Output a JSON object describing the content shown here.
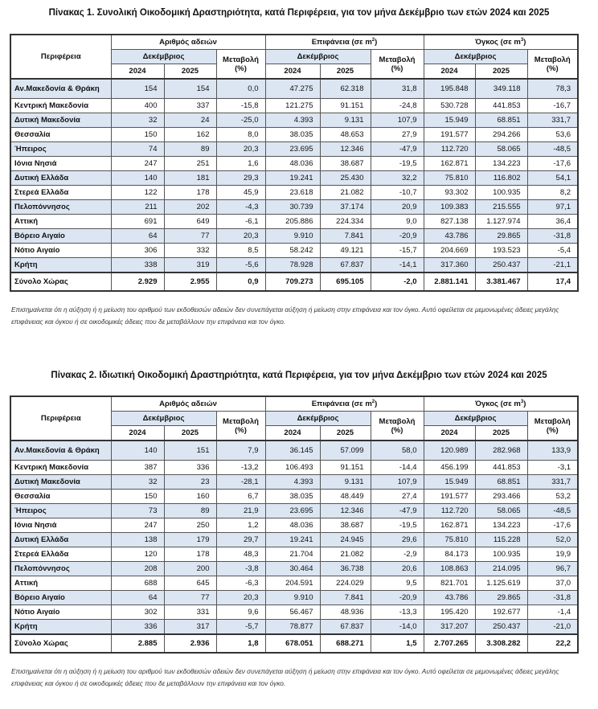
{
  "headers": {
    "region": "Περιφέρεια",
    "permits": "Αριθμός αδειών",
    "area": "Επιφάνεια (σε m",
    "volume": "Όγκος (σε m",
    "area_sup": "2",
    "volume_sup": "3",
    "month": "Δεκέμβριος",
    "change": "Μεταβολή",
    "change_unit": "(%)",
    "y1": "2024",
    "y2": "2025"
  },
  "tables": [
    {
      "title": "Πίνακας 1. Συνολική Οικοδομική Δραστηριότητα, κατά  Περιφέρεια, για τον μήνα Δεκέμβριο των ετών 2024 και 2025",
      "rows": [
        [
          "Αν.Μακεδονία & Θράκη",
          "154",
          "154",
          "0,0",
          "47.275",
          "62.318",
          "31,8",
          "195.848",
          "349.118",
          "78,3"
        ],
        [
          "Κεντρική Μακεδονία",
          "400",
          "337",
          "-15,8",
          "121.275",
          "91.151",
          "-24,8",
          "530.728",
          "441.853",
          "-16,7"
        ],
        [
          "Δυτική Μακεδονία",
          "32",
          "24",
          "-25,0",
          "4.393",
          "9.131",
          "107,9",
          "15.949",
          "68.851",
          "331,7"
        ],
        [
          "Θεσσαλία",
          "150",
          "162",
          "8,0",
          "38.035",
          "48.653",
          "27,9",
          "191.577",
          "294.266",
          "53,6"
        ],
        [
          "Ήπειρος",
          "74",
          "89",
          "20,3",
          "23.695",
          "12.346",
          "-47,9",
          "112.720",
          "58.065",
          "-48,5"
        ],
        [
          "Ιόνια Νησιά",
          "247",
          "251",
          "1,6",
          "48.036",
          "38.687",
          "-19,5",
          "162.871",
          "134.223",
          "-17,6"
        ],
        [
          "Δυτική Ελλάδα",
          "140",
          "181",
          "29,3",
          "19.241",
          "25.430",
          "32,2",
          "75.810",
          "116.802",
          "54,1"
        ],
        [
          "Στερεά Ελλάδα",
          "122",
          "178",
          "45,9",
          "23.618",
          "21.082",
          "-10,7",
          "93.302",
          "100.935",
          "8,2"
        ],
        [
          "Πελοπόννησος",
          "211",
          "202",
          "-4,3",
          "30.739",
          "37.174",
          "20,9",
          "109.383",
          "215.555",
          "97,1"
        ],
        [
          "Αττική",
          "691",
          "649",
          "-6,1",
          "205.886",
          "224.334",
          "9,0",
          "827.138",
          "1.127.974",
          "36,4"
        ],
        [
          "Βόρειο Αιγαίο",
          "64",
          "77",
          "20,3",
          "9.910",
          "7.841",
          "-20,9",
          "43.786",
          "29.865",
          "-31,8"
        ],
        [
          "Νότιο Αιγαίο",
          "306",
          "332",
          "8,5",
          "58.242",
          "49.121",
          "-15,7",
          "204.669",
          "193.523",
          "-5,4"
        ],
        [
          "Κρήτη",
          "338",
          "319",
          "-5,6",
          "78.928",
          "67.837",
          "-14,1",
          "317.360",
          "250.437",
          "-21,1"
        ],
        [
          "Σύνολο Χώρας",
          "2.929",
          "2.955",
          "0,9",
          "709.273",
          "695.105",
          "-2,0",
          "2.881.141",
          "3.381.467",
          "17,4"
        ]
      ],
      "note": "Επισημαίνεται ότι η αύξηση ή η μείωση του αριθμού των εκδοθεισών αδειών δεν συνεπάγεται αύξηση ή μείωση στην επιφάνεια και τον όγκο. Αυτό οφείλεται σε μεμονωμένες άδειες μεγάλης επιφάνειας και όγκου ή σε οικοδομικές άδειες που δε μεταβάλλουν την επιφάνεια και τον όγκο."
    },
    {
      "title": "Πίνακας 2. Ιδιωτική Οικοδομική Δραστηριότητα, κατά  Περιφέρεια, για τον μήνα Δεκέμβριο των ετών 2024 και 2025",
      "rows": [
        [
          "Αν.Μακεδονία & Θράκη",
          "140",
          "151",
          "7,9",
          "36.145",
          "57.099",
          "58,0",
          "120.989",
          "282.968",
          "133,9"
        ],
        [
          "Κεντρική Μακεδονία",
          "387",
          "336",
          "-13,2",
          "106.493",
          "91.151",
          "-14,4",
          "456.199",
          "441.853",
          "-3,1"
        ],
        [
          "Δυτική Μακεδονία",
          "32",
          "23",
          "-28,1",
          "4.393",
          "9.131",
          "107,9",
          "15.949",
          "68.851",
          "331,7"
        ],
        [
          "Θεσσαλία",
          "150",
          "160",
          "6,7",
          "38.035",
          "48.449",
          "27,4",
          "191.577",
          "293.466",
          "53,2"
        ],
        [
          "Ήπειρος",
          "73",
          "89",
          "21,9",
          "23.695",
          "12.346",
          "-47,9",
          "112.720",
          "58.065",
          "-48,5"
        ],
        [
          "Ιόνια Νησιά",
          "247",
          "250",
          "1,2",
          "48.036",
          "38.687",
          "-19,5",
          "162.871",
          "134.223",
          "-17,6"
        ],
        [
          "Δυτική Ελλάδα",
          "138",
          "179",
          "29,7",
          "19.241",
          "24.945",
          "29,6",
          "75.810",
          "115.228",
          "52,0"
        ],
        [
          "Στερεά Ελλάδα",
          "120",
          "178",
          "48,3",
          "21.704",
          "21.082",
          "-2,9",
          "84.173",
          "100.935",
          "19,9"
        ],
        [
          "Πελοπόννησος",
          "208",
          "200",
          "-3,8",
          "30.464",
          "36.738",
          "20,6",
          "108.863",
          "214.095",
          "96,7"
        ],
        [
          "Αττική",
          "688",
          "645",
          "-6,3",
          "204.591",
          "224.029",
          "9,5",
          "821.701",
          "1.125.619",
          "37,0"
        ],
        [
          "Βόρειο Αιγαίο",
          "64",
          "77",
          "20,3",
          "9.910",
          "7.841",
          "-20,9",
          "43.786",
          "29.865",
          "-31,8"
        ],
        [
          "Νότιο Αιγαίο",
          "302",
          "331",
          "9,6",
          "56.467",
          "48.936",
          "-13,3",
          "195.420",
          "192.677",
          "-1,4"
        ],
        [
          "Κρήτη",
          "336",
          "317",
          "-5,7",
          "78.877",
          "67.837",
          "-14,0",
          "317.207",
          "250.437",
          "-21,0"
        ],
        [
          "Σύνολο Χώρας",
          "2.885",
          "2.936",
          "1,8",
          "678.051",
          "688.271",
          "1,5",
          "2.707.265",
          "3.308.282",
          "22,2"
        ]
      ],
      "note": "Επισημαίνεται ότι η αύξηση ή η μείωση του αριθμού των εκδοθεισών αδειών δεν συνεπάγεται αύξηση ή μείωση στην επιφάνεια και τον όγκο. Αυτό οφείλεται σε μεμονωμένες άδειες μεγάλης επιφάνειας και όγκου ή σε οικοδομικές άδειες που δε μεταβάλλουν την επιφάνεια και τον όγκο."
    }
  ]
}
